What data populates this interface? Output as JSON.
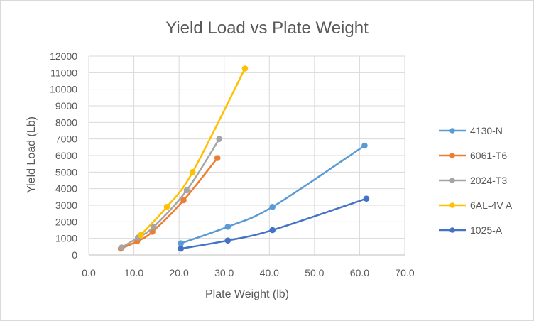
{
  "chart_data": {
    "type": "scatter",
    "title": "Yield Load vs Plate Weight",
    "xlabel": "Plate Weight (lb)",
    "ylabel": "Yield Load (Lb)",
    "xlim": [
      0,
      70
    ],
    "ylim": [
      0,
      12000
    ],
    "x_ticks": [
      "0.0",
      "10.0",
      "20.0",
      "30.0",
      "40.0",
      "50.0",
      "60.0",
      "70.0"
    ],
    "y_ticks": [
      "0",
      "1000",
      "2000",
      "3000",
      "4000",
      "5000",
      "6000",
      "7000",
      "8000",
      "9000",
      "10000",
      "11000",
      "12000"
    ],
    "grid": true,
    "legend_position": "right",
    "series": [
      {
        "name": "4130-N",
        "color": "#5b9bd5",
        "x": [
          20.4,
          30.8,
          40.7,
          61.1
        ],
        "y": [
          700,
          1700,
          2900,
          6600
        ]
      },
      {
        "name": "6061-T6",
        "color": "#ed7d31",
        "x": [
          7.1,
          10.7,
          14.1,
          21.0,
          28.5
        ],
        "y": [
          380,
          820,
          1400,
          3300,
          5850
        ]
      },
      {
        "name": "2024-T3",
        "color": "#a5a5a5",
        "x": [
          7.3,
          10.9,
          14.4,
          21.7,
          28.9
        ],
        "y": [
          450,
          1050,
          1700,
          3900,
          7000
        ]
      },
      {
        "name": "6AL-4V A",
        "color": "#ffc000",
        "x": [
          11.5,
          17.3,
          23.0,
          34.6
        ],
        "y": [
          1200,
          2900,
          5000,
          11250
        ]
      },
      {
        "name": "1025-A",
        "color": "#4472c4",
        "x": [
          20.4,
          30.8,
          40.7,
          61.5
        ],
        "y": [
          380,
          870,
          1500,
          3400
        ]
      }
    ]
  }
}
